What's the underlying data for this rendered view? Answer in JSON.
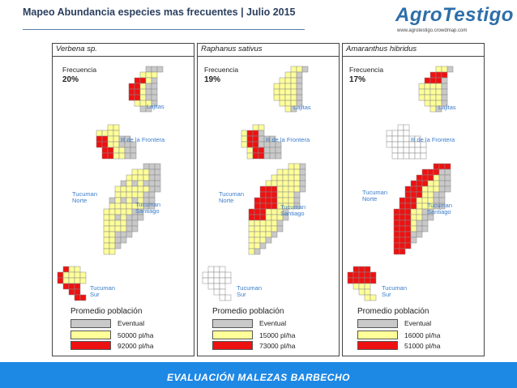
{
  "header": {
    "title": "Mapeo Abundancia especies mas frecuentes | Julio 2015",
    "logo_text": "AgroTestigo",
    "logo_url": "www.agrotestigo.crowdmap.com"
  },
  "panels": [
    {
      "species": "Verbena sp.",
      "freq_label": "Frecuencia",
      "freq_value": "20%"
    },
    {
      "species": "Raphanus sativus",
      "freq_label": "Frecuencia",
      "freq_value": "19%"
    },
    {
      "species": "Amaranthus hibridus",
      "freq_label": "Frecuencia",
      "freq_value": "17%"
    }
  ],
  "places": {
    "lajitas": "Lajitas",
    "frontera": "R de la Frontera",
    "tuc_norte_1": "Tucuman",
    "tuc_norte_2": "Norte",
    "tuc_santiago_1": "Tucuman",
    "tuc_santiago_2": "Santiago",
    "tuc_sur_1": "Tucuman",
    "tuc_sur_2": "Sur"
  },
  "legend": {
    "title": "Promedio población",
    "eventual": "Eventual",
    "panels": [
      {
        "yellow": "50000 pl/ha",
        "red": "92000 pl/ha"
      },
      {
        "yellow": "15000 pl/ha",
        "red": "73000 pl/ha"
      },
      {
        "yellow": "16000 pl/ha",
        "red": "51000 pl/ha"
      }
    ]
  },
  "colors": {
    "gray": "#c9c9c9",
    "yellow": "#ffff99",
    "red": "#ee1111",
    "place_text": "#3a7cc8",
    "banner": "#1e88e5"
  },
  "footer": {
    "banner": "EVALUACIÓN MALEZAS BARBECHO"
  }
}
